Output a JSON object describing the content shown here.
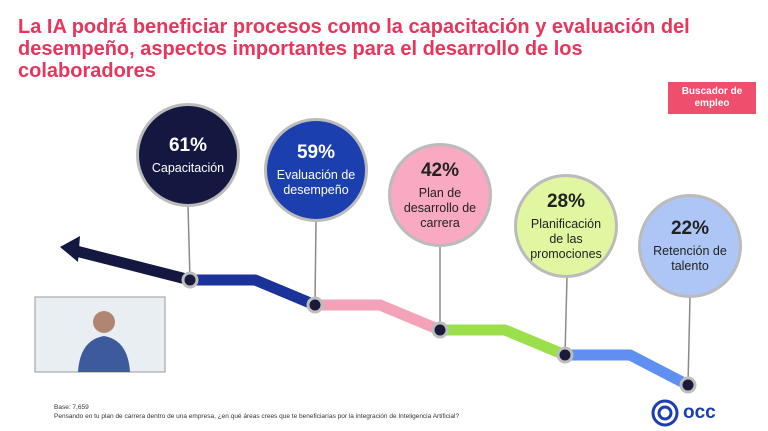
{
  "header": {
    "title": "La IA podrá beneficiar procesos como la capacitación y evaluación del desempeño, aspectos importantes para el desarrollo de los colaboradores",
    "badge": "Buscador de empleo"
  },
  "items": [
    {
      "value": "61%",
      "label": "Capacitación"
    },
    {
      "value": "59%",
      "label": "Evaluación de desempeño"
    },
    {
      "value": "42%",
      "label": "Plan de desarrollo de carrera"
    },
    {
      "value": "28%",
      "label": "Planificación de las promociones"
    },
    {
      "value": "22%",
      "label": "Retención de talento"
    }
  ],
  "footer": {
    "base": "Base: 7,659",
    "question": "Pensando en tu plan de carrera dentro de una empresa, ¿en qué áreas crees que te beneficiarías por la integración de Inteligencia Artificial?",
    "logo": "occ"
  }
}
